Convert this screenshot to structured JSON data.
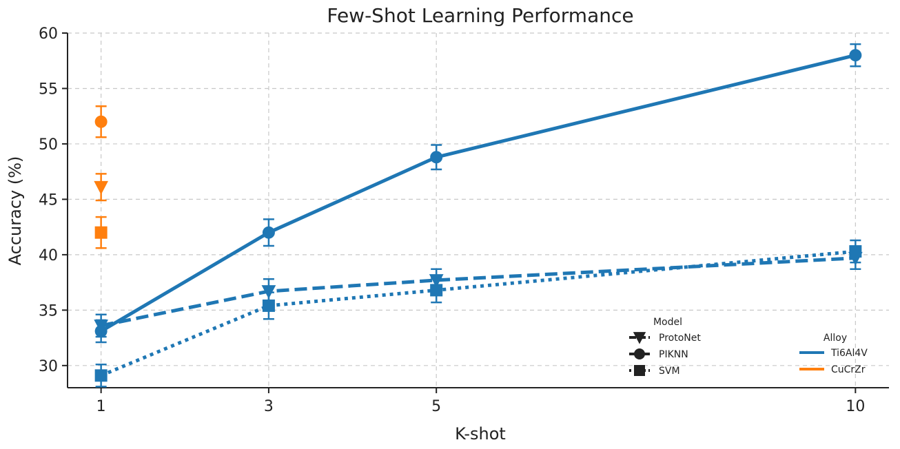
{
  "chart_data": {
    "type": "line",
    "title": "Few-Shot Learning Performance",
    "xlabel": "K-shot",
    "ylabel": "Accuracy (%)",
    "x_categories": [
      "1",
      "3",
      "5",
      "10"
    ],
    "x": [
      1,
      3,
      5,
      10
    ],
    "xlim": [
      0.6,
      10.4
    ],
    "ylim": [
      28,
      60
    ],
    "yticks": [
      30,
      35,
      40,
      45,
      50,
      55,
      60
    ],
    "grid": true,
    "colors": {
      "Ti6Al4V": "#1f77b4",
      "CuCrZr": "#ff7f0e"
    },
    "series": [
      {
        "name": "PIKNN",
        "alloy": "Ti6Al4V",
        "marker": "circle",
        "linestyle": "solid",
        "x": [
          1,
          3,
          5,
          10
        ],
        "y": [
          33.1,
          42.0,
          48.8,
          58.0
        ],
        "err": [
          1.0,
          1.2,
          1.1,
          1.0
        ]
      },
      {
        "name": "ProtoNet",
        "alloy": "Ti6Al4V",
        "marker": "triangle-down",
        "linestyle": "dashed",
        "x": [
          1,
          3,
          5,
          10
        ],
        "y": [
          33.6,
          36.7,
          37.7,
          39.7
        ],
        "err": [
          1.0,
          1.1,
          1.0,
          1.0
        ]
      },
      {
        "name": "SVM",
        "alloy": "Ti6Al4V",
        "marker": "square",
        "linestyle": "dotted",
        "x": [
          1,
          3,
          5,
          10
        ],
        "y": [
          29.1,
          35.4,
          36.8,
          40.3
        ],
        "err": [
          1.0,
          1.2,
          1.1,
          1.0
        ]
      },
      {
        "name": "PIKNN",
        "alloy": "CuCrZr",
        "marker": "circle",
        "linestyle": "solid",
        "x": [
          1
        ],
        "y": [
          52.0
        ],
        "err": [
          1.4
        ]
      },
      {
        "name": "ProtoNet",
        "alloy": "CuCrZr",
        "marker": "triangle-down",
        "linestyle": "dashed",
        "x": [
          1
        ],
        "y": [
          46.1
        ],
        "err": [
          1.2
        ]
      },
      {
        "name": "SVM",
        "alloy": "CuCrZr",
        "marker": "square",
        "linestyle": "dotted",
        "x": [
          1
        ],
        "y": [
          42.0
        ],
        "err": [
          1.4
        ]
      }
    ],
    "legend": {
      "placement": "lower-right",
      "model": {
        "title": "Model",
        "entries": [
          {
            "label": "ProtoNet",
            "marker": "triangle-down",
            "linestyle": "dashed"
          },
          {
            "label": "PIKNN",
            "marker": "circle",
            "linestyle": "solid"
          },
          {
            "label": "SVM",
            "marker": "square",
            "linestyle": "dotted"
          }
        ]
      },
      "alloy": {
        "title": "Alloy",
        "entries": [
          {
            "label": "Ti6Al4V",
            "color": "#1f77b4"
          },
          {
            "label": "CuCrZr",
            "color": "#ff7f0e"
          }
        ]
      }
    }
  }
}
